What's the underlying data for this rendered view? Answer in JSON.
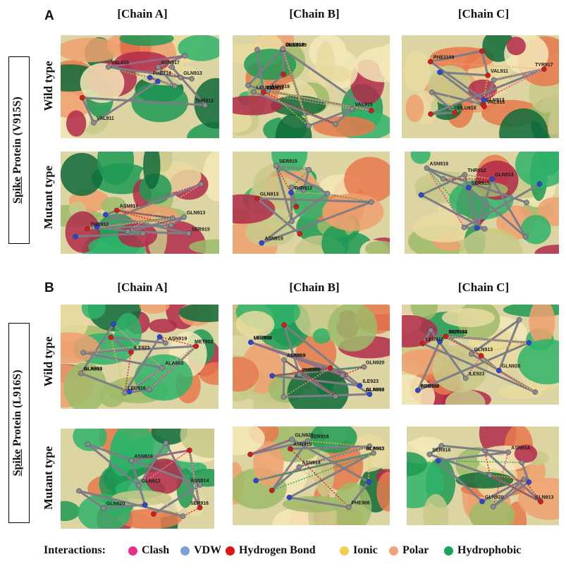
{
  "panels": {
    "A": {
      "letter": "A",
      "side_label_prefix": "Spike",
      "side_label_rest": " Protein  (V915S)",
      "chains": [
        "[Chain A]",
        "[Chain B]",
        "[Chain C]"
      ],
      "row_labels": [
        "Wild type",
        "Mutant type"
      ],
      "tiles": [
        [
          "VAL911",
          "THR912",
          "GLN913",
          "VAL915",
          "ASN917",
          "PHE718"
        ],
        [
          "TYR917",
          "GLN913",
          "ASN919",
          "GLU918",
          "VAL915",
          "LEU912",
          "VAL911",
          "PHE1089"
        ],
        [
          "PHE1109",
          "VAL911",
          "GLN913",
          "GLU918",
          "TYR917",
          "VAL915"
        ],
        [
          "THR912",
          "GLN913",
          "SER915",
          "ASN919"
        ],
        [
          "GLN913",
          "ASN919",
          "SER915",
          "THR912"
        ],
        [
          "ASN919",
          "SER915",
          "GLN913",
          "THR912"
        ]
      ]
    },
    "B": {
      "letter": "B",
      "side_label_prefix": "Spike",
      "side_label_rest": " Protein  (L916S)",
      "chains": [
        "[Chain A]",
        "[Chain B]",
        "[Chain C]"
      ],
      "row_labels": [
        "Wild type",
        "Mutant type"
      ],
      "tiles": [
        [
          "GLN913",
          "ALA903",
          "MET902",
          "LEU916",
          "ASN919",
          "ILE923",
          "ALA899"
        ],
        [
          "MET902",
          "ALA899",
          "ALA903",
          "PHE906",
          "ILE923",
          "GLN920",
          "LEU916",
          "GLN913",
          "ASN919"
        ],
        [
          "ASN919",
          "ASN914",
          "GLN920",
          "GLN913",
          "LEU916",
          "ILE923",
          "PHE906",
          "MET902"
        ],
        [
          "ASN914",
          "GLN913",
          "SER916",
          "ASN919",
          "GLN920"
        ],
        [
          "ALA903",
          "PHE906",
          "GLN920",
          "SER916",
          "ASN914",
          "ASN919",
          "GLN913"
        ],
        [
          "GLN913",
          "SER916",
          "ASN914",
          "GLN920"
        ]
      ]
    }
  },
  "legend": {
    "title": "Interactions:",
    "items": [
      {
        "label": "Clash",
        "color": "#e8308a"
      },
      {
        "label": "VDW",
        "color": "#7b9fd6"
      },
      {
        "label": "Hydrogen Bond",
        "color": "#e01414"
      },
      {
        "label": "Ionic",
        "color": "#f2cf4a"
      },
      {
        "label": "Polar",
        "color": "#f2a37a"
      },
      {
        "label": "Hydrophobic",
        "color": "#1aa35a"
      }
    ]
  }
}
